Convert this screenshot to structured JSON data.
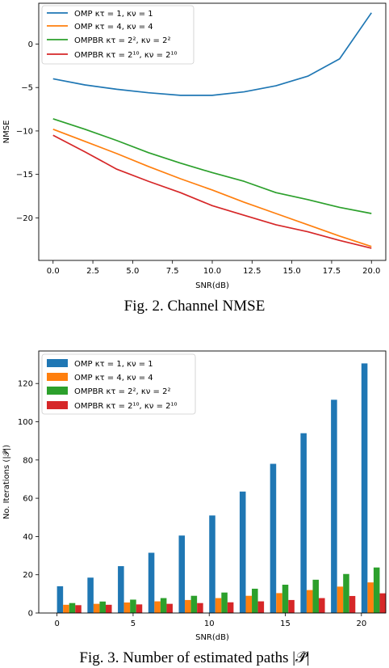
{
  "figures": [
    {
      "caption": "Fig. 2.  Channel NMSE",
      "chart_data": {
        "type": "line",
        "title": "",
        "xlabel": "SNR(dB)",
        "ylabel": "NMSE",
        "xlim": [
          -0.9,
          20.9
        ],
        "ylim": [
          -24.9,
          4.7
        ],
        "xticks": [
          0,
          2.5,
          5,
          7.5,
          10,
          12.5,
          15,
          17.5,
          20
        ],
        "xtick_labels": [
          "0.0",
          "2.5",
          "5.0",
          "7.5",
          "10.0",
          "12.5",
          "15.0",
          "17.5",
          "20.0"
        ],
        "yticks": [
          0,
          -5,
          -10,
          -15,
          -20
        ],
        "ytick_labels": [
          "0",
          "−5",
          "−10",
          "−15",
          "−20"
        ],
        "grid": false,
        "legend_position": "top-left",
        "x": [
          0,
          2,
          4,
          6,
          8,
          10,
          12,
          14,
          16,
          18,
          20
        ],
        "series": [
          {
            "name": "OMP κτ = 1, κν = 1",
            "color": "#1f77b4",
            "values": [
              -4.0,
              -4.7,
              -5.2,
              -5.6,
              -5.9,
              -5.9,
              -5.5,
              -4.8,
              -3.7,
              -1.7,
              3.6
            ]
          },
          {
            "name": "OMP κτ = 4, κν = 4",
            "color": "#ff7f0e",
            "values": [
              -9.8,
              -11.2,
              -12.6,
              -14.1,
              -15.5,
              -16.8,
              -18.2,
              -19.5,
              -20.8,
              -22.1,
              -23.3
            ]
          },
          {
            "name": "OMPBR κτ = 2², κν = 2²",
            "color": "#2ca02c",
            "values": [
              -8.6,
              -9.8,
              -11.1,
              -12.5,
              -13.7,
              -14.8,
              -15.8,
              -17.1,
              -17.9,
              -18.8,
              -19.5
            ]
          },
          {
            "name": "OMPBR κτ = 2¹⁰, κν = 2¹⁰",
            "color": "#d62728",
            "values": [
              -10.5,
              -12.4,
              -14.4,
              -15.8,
              -17.1,
              -18.6,
              -19.7,
              -20.8,
              -21.6,
              -22.6,
              -23.5
            ]
          }
        ]
      }
    },
    {
      "caption": "Fig. 3.  Number of estimated paths |𝒫̂|",
      "chart_data": {
        "type": "bar",
        "title": "",
        "xlabel": "SNR(dB)",
        "ylabel": "No. Iterations (|𝒫̂|)",
        "xlim": [
          -1.2,
          21.6
        ],
        "ylim": [
          0,
          137
        ],
        "xticks": [
          0,
          5,
          10,
          15,
          20
        ],
        "xtick_labels": [
          "0",
          "5",
          "10",
          "15",
          "20"
        ],
        "yticks": [
          0,
          20,
          40,
          60,
          80,
          100,
          120
        ],
        "ytick_labels": [
          "0",
          "20",
          "40",
          "60",
          "80",
          "100",
          "120"
        ],
        "grid": false,
        "legend_position": "top-left",
        "x": [
          0,
          2,
          4,
          6,
          8,
          10,
          12,
          14,
          16,
          18,
          20
        ],
        "series": [
          {
            "name": "OMP κτ = 1, κν = 1",
            "color": "#1f77b4",
            "values": [
              14,
              18.5,
              24.5,
              31.5,
              40.5,
              51,
              63.5,
              78,
              94,
              111.5,
              130.5
            ]
          },
          {
            "name": "OMP κτ = 4, κν = 4",
            "color": "#ff7f0e",
            "values": [
              4.3,
              4.8,
              5.5,
              6.1,
              6.8,
              7.8,
              9,
              10.4,
              12,
              13.8,
              16
            ]
          },
          {
            "name": "OMPBR κτ = 2², κν = 2²",
            "color": "#2ca02c",
            "values": [
              5.2,
              6,
              7,
              7.8,
              9,
              10.7,
              12.7,
              14.8,
              17.4,
              20.4,
              23.8
            ]
          },
          {
            "name": "OMPBR κτ = 2¹⁰, κν = 2¹⁰",
            "color": "#d62728",
            "values": [
              4.1,
              4.3,
              4.5,
              4.8,
              5.2,
              5.6,
              6.1,
              6.8,
              7.8,
              8.9,
              10.3
            ]
          }
        ]
      }
    }
  ]
}
